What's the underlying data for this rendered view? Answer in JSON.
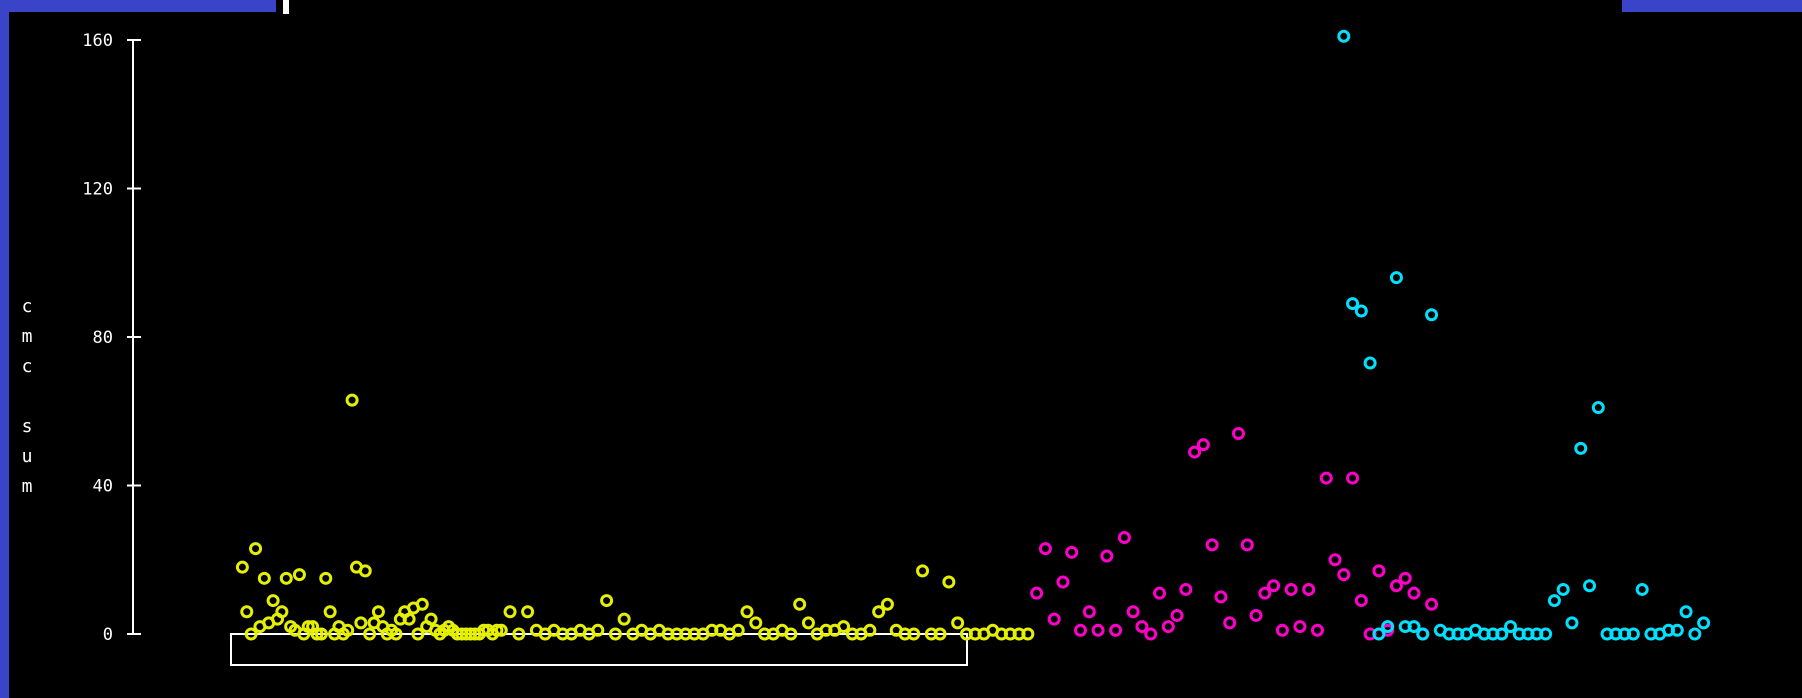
{
  "chart_data": {
    "type": "scatter",
    "title": "",
    "xlabel": "",
    "ylabel": "cmc sum",
    "ylim": [
      0,
      160
    ],
    "xlim": [
      0,
      335
    ],
    "yticks": [
      0,
      40,
      80,
      120,
      160
    ],
    "grid": false,
    "colors": {
      "background": "#000000",
      "axis": "#ffffff",
      "frame": "#3a44c8"
    },
    "series": [
      {
        "color": "#e5f000",
        "x": [
          1,
          2,
          3,
          4,
          5,
          6,
          7,
          8,
          9,
          10,
          11,
          12,
          13,
          14,
          15,
          16,
          17,
          18,
          19,
          20,
          21,
          22,
          23,
          24,
          25,
          26,
          27,
          28,
          29,
          30,
          31,
          32,
          33,
          34,
          35,
          36,
          37,
          38,
          39,
          40,
          41,
          42,
          43,
          44,
          45,
          46,
          47,
          48,
          49,
          50,
          51,
          52,
          53,
          54,
          55,
          56,
          57,
          58,
          59,
          60,
          62,
          64,
          66,
          68,
          70,
          72,
          74,
          76,
          78,
          80,
          82,
          84,
          86,
          88,
          90,
          92,
          94,
          96,
          98,
          100,
          102,
          104,
          106,
          108,
          110,
          112,
          114,
          116,
          118,
          120,
          122,
          124,
          126,
          128,
          130,
          132,
          134,
          136,
          138,
          140,
          142,
          144,
          146,
          148,
          150,
          152,
          154,
          156,
          158,
          160,
          162,
          164,
          166,
          168,
          170,
          172,
          174,
          176,
          178,
          180
        ],
        "y": [
          18,
          6,
          0,
          23,
          2,
          15,
          3,
          9,
          4,
          6,
          15,
          2,
          1,
          16,
          0,
          2,
          2,
          0,
          0,
          15,
          6,
          0,
          2,
          0,
          1,
          63,
          18,
          3,
          17,
          0,
          3,
          6,
          2,
          0,
          1,
          0,
          4,
          6,
          4,
          7,
          0,
          8,
          2,
          4,
          1,
          0,
          1,
          2,
          1,
          0,
          0,
          0,
          0,
          0,
          0,
          1,
          1,
          0,
          1,
          1,
          6,
          0,
          6,
          1,
          0,
          1,
          0,
          0,
          1,
          0,
          1,
          9,
          0,
          4,
          0,
          1,
          0,
          1,
          0,
          0,
          0,
          0,
          0,
          1,
          1,
          0,
          1,
          6,
          3,
          0,
          0,
          1,
          0,
          8,
          3,
          0,
          1,
          1,
          2,
          0,
          0,
          1,
          6,
          8,
          1,
          0,
          0,
          17,
          0,
          0,
          14,
          3,
          0,
          0,
          0,
          1,
          0,
          0,
          0,
          0
        ]
      },
      {
        "color": "#ff00c8",
        "x": [
          182,
          184,
          186,
          188,
          190,
          192,
          194,
          196,
          198,
          200,
          202,
          204,
          206,
          208,
          210,
          212,
          214,
          216,
          218,
          220,
          222,
          224,
          226,
          228,
          230,
          232,
          234,
          236,
          238,
          240,
          242,
          244,
          246,
          248,
          250,
          252,
          254,
          256
        ],
        "y": [
          11,
          23,
          4,
          14,
          22,
          1,
          6,
          1,
          21,
          1,
          26,
          6,
          2,
          0,
          11,
          2,
          5,
          12,
          49,
          51,
          24,
          10,
          3,
          54,
          24,
          5,
          11,
          13,
          1,
          12,
          2,
          12,
          1,
          42,
          20,
          16,
          42,
          9
        ],
        "x_extra": [
          258,
          260,
          262,
          264,
          266,
          268,
          270,
          272
        ],
        "y_extra": [
          0,
          17,
          1,
          13,
          15,
          11,
          0,
          8
        ]
      },
      {
        "color": "#00e0ff",
        "x": [
          252,
          254,
          256,
          258,
          260,
          262,
          264,
          266,
          268,
          270,
          272,
          274,
          276,
          278,
          280,
          282,
          284,
          286,
          288,
          290,
          292,
          294,
          296,
          298,
          300,
          302,
          304,
          306,
          308,
          310,
          312,
          314,
          316,
          318,
          320,
          322,
          324,
          326,
          328,
          330,
          332,
          334
        ],
        "y": [
          161,
          89,
          87,
          73,
          0,
          2,
          96,
          2,
          2,
          0,
          86,
          1,
          0,
          0,
          0,
          1,
          0,
          0,
          0,
          2,
          0,
          0,
          0,
          0,
          9,
          12,
          3,
          50,
          13,
          61,
          0,
          0,
          0,
          0,
          12,
          0,
          0,
          1,
          1,
          6,
          0,
          3
        ]
      }
    ]
  }
}
